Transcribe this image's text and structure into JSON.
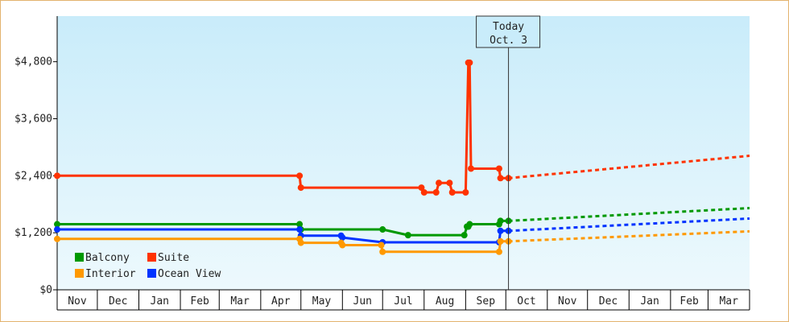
{
  "chart_data": {
    "type": "line",
    "ylim": [
      0,
      5760
    ],
    "y_ticks": [
      {
        "value": 0,
        "label": "$0"
      },
      {
        "value": 1200,
        "label": "$1,200"
      },
      {
        "value": 2400,
        "label": "$2,400"
      },
      {
        "value": 3600,
        "label": "$3,600"
      },
      {
        "value": 4800,
        "label": "$4,800"
      }
    ],
    "x_domain": [
      "2023-11-01",
      "2025-04-01"
    ],
    "x_ticks": [
      {
        "start": "2023-11-01",
        "end": "2023-12-01",
        "label": "Nov"
      },
      {
        "start": "2023-12-01",
        "end": "2024-01-01",
        "label": "Dec"
      },
      {
        "start": "2024-01-01",
        "end": "2024-02-01",
        "label": "Jan"
      },
      {
        "start": "2024-02-01",
        "end": "2024-03-01",
        "label": "Feb"
      },
      {
        "start": "2024-03-01",
        "end": "2024-04-01",
        "label": "Mar"
      },
      {
        "start": "2024-04-01",
        "end": "2024-05-01",
        "label": "Apr"
      },
      {
        "start": "2024-05-01",
        "end": "2024-06-01",
        "label": "May"
      },
      {
        "start": "2024-06-01",
        "end": "2024-07-01",
        "label": "Jun"
      },
      {
        "start": "2024-07-01",
        "end": "2024-08-01",
        "label": "Jul"
      },
      {
        "start": "2024-08-01",
        "end": "2024-09-01",
        "label": "Aug"
      },
      {
        "start": "2024-09-01",
        "end": "2024-10-01",
        "label": "Sep"
      },
      {
        "start": "2024-10-01",
        "end": "2024-11-01",
        "label": "Oct"
      },
      {
        "start": "2024-11-01",
        "end": "2024-12-01",
        "label": "Nov"
      },
      {
        "start": "2024-12-01",
        "end": "2025-01-01",
        "label": "Dec"
      },
      {
        "start": "2025-01-01",
        "end": "2025-02-01",
        "label": "Jan"
      },
      {
        "start": "2025-02-01",
        "end": "2025-03-01",
        "label": "Feb"
      },
      {
        "start": "2025-03-01",
        "end": "2025-04-01",
        "label": "Mar"
      }
    ],
    "today": {
      "date": "2024-10-03",
      "label_line1": "Today",
      "label_line2": "Oct. 3"
    },
    "grid": false,
    "legend_position": "bottom-left",
    "series": [
      {
        "name": "Suite",
        "color": "#ff3300",
        "points": [
          [
            "2023-11-01",
            2400
          ],
          [
            "2024-04-30",
            2400
          ],
          [
            "2024-05-01",
            2150
          ],
          [
            "2024-07-30",
            2150
          ],
          [
            "2024-08-01",
            2050
          ],
          [
            "2024-08-10",
            2050
          ],
          [
            "2024-08-12",
            2250
          ],
          [
            "2024-08-20",
            2250
          ],
          [
            "2024-08-22",
            2050
          ],
          [
            "2024-09-01",
            2050
          ],
          [
            "2024-09-03",
            4780
          ],
          [
            "2024-09-04",
            4780
          ],
          [
            "2024-09-05",
            2550
          ],
          [
            "2024-09-26",
            2550
          ],
          [
            "2024-09-27",
            2350
          ],
          [
            "2024-10-03",
            2350
          ]
        ],
        "projection": [
          [
            "2024-10-03",
            2350
          ],
          [
            "2025-04-01",
            2820
          ]
        ]
      },
      {
        "name": "Balcony",
        "color": "#009900",
        "points": [
          [
            "2023-11-01",
            1380
          ],
          [
            "2024-04-30",
            1380
          ],
          [
            "2024-05-01",
            1270
          ],
          [
            "2024-07-01",
            1270
          ],
          [
            "2024-07-20",
            1150
          ],
          [
            "2024-08-31",
            1150
          ],
          [
            "2024-09-02",
            1330
          ],
          [
            "2024-09-03",
            1330
          ],
          [
            "2024-09-04",
            1380
          ],
          [
            "2024-09-26",
            1380
          ],
          [
            "2024-09-27",
            1450
          ],
          [
            "2024-10-03",
            1450
          ]
        ],
        "projection": [
          [
            "2024-10-03",
            1450
          ],
          [
            "2025-04-01",
            1720
          ]
        ]
      },
      {
        "name": "Ocean View",
        "color": "#0033ff",
        "points": [
          [
            "2023-11-01",
            1270
          ],
          [
            "2024-04-30",
            1270
          ],
          [
            "2024-05-01",
            1140
          ],
          [
            "2024-05-31",
            1140
          ],
          [
            "2024-06-01",
            1100
          ],
          [
            "2024-07-01",
            1000
          ],
          [
            "2024-09-26",
            1000
          ],
          [
            "2024-09-27",
            1240
          ],
          [
            "2024-10-03",
            1240
          ]
        ],
        "projection": [
          [
            "2024-10-03",
            1240
          ],
          [
            "2025-04-01",
            1500
          ]
        ]
      },
      {
        "name": "Interior",
        "color": "#ff9900",
        "points": [
          [
            "2023-11-01",
            1070
          ],
          [
            "2024-04-30",
            1070
          ],
          [
            "2024-05-01",
            990
          ],
          [
            "2024-05-31",
            990
          ],
          [
            "2024-06-01",
            940
          ],
          [
            "2024-06-30",
            940
          ],
          [
            "2024-07-01",
            800
          ],
          [
            "2024-09-26",
            800
          ],
          [
            "2024-09-27",
            1020
          ],
          [
            "2024-10-03",
            1020
          ]
        ],
        "projection": [
          [
            "2024-10-03",
            1020
          ],
          [
            "2025-04-01",
            1230
          ]
        ]
      }
    ],
    "legend": [
      {
        "name": "Balcony",
        "color": "#009900"
      },
      {
        "name": "Suite",
        "color": "#ff3300"
      },
      {
        "name": "Interior",
        "color": "#ff9900"
      },
      {
        "name": "Ocean View",
        "color": "#0033ff"
      }
    ]
  }
}
